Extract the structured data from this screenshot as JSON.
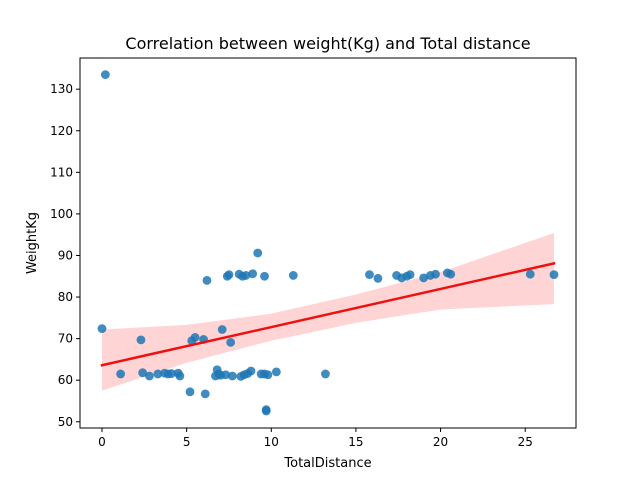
{
  "chart_data": {
    "type": "scatter",
    "title": "Correlation between weight(Kg) and Total distance",
    "xlabel": "TotalDistance",
    "ylabel": "WeightKg",
    "xlim": [
      -1.3,
      28.0
    ],
    "ylim": [
      48.5,
      137.5
    ],
    "xticks": [
      0,
      5,
      10,
      15,
      20,
      25
    ],
    "yticks": [
      50,
      60,
      70,
      80,
      90,
      100,
      110,
      120,
      130
    ],
    "grid": false,
    "colors": {
      "points": "#1f77b4",
      "regression_line": "#ee1111",
      "confidence_band": "#ffcccc"
    },
    "regression": {
      "x": [
        0,
        26.7
      ],
      "y": [
        63.6,
        88.1
      ]
    },
    "confidence_band": {
      "x": [
        0,
        5,
        10,
        15,
        20,
        26.7
      ],
      "lower": [
        57.5,
        64.2,
        69.5,
        73.8,
        77.0,
        78.3
      ],
      "upper": [
        72.2,
        73.3,
        76.0,
        80.6,
        86.0,
        95.4
      ]
    },
    "points": [
      {
        "x": 0.2,
        "y": 133.5
      },
      {
        "x": 0.0,
        "y": 72.4
      },
      {
        "x": 1.1,
        "y": 61.5
      },
      {
        "x": 2.3,
        "y": 69.7
      },
      {
        "x": 2.4,
        "y": 61.8
      },
      {
        "x": 2.8,
        "y": 61.0
      },
      {
        "x": 3.3,
        "y": 61.5
      },
      {
        "x": 3.7,
        "y": 61.7
      },
      {
        "x": 3.9,
        "y": 61.5
      },
      {
        "x": 4.1,
        "y": 61.6
      },
      {
        "x": 4.5,
        "y": 61.7
      },
      {
        "x": 4.6,
        "y": 61.0
      },
      {
        "x": 5.2,
        "y": 57.2
      },
      {
        "x": 5.3,
        "y": 69.5
      },
      {
        "x": 5.5,
        "y": 70.3
      },
      {
        "x": 6.0,
        "y": 69.8
      },
      {
        "x": 6.1,
        "y": 56.7
      },
      {
        "x": 6.2,
        "y": 84.0
      },
      {
        "x": 6.7,
        "y": 61.0
      },
      {
        "x": 6.8,
        "y": 62.5
      },
      {
        "x": 6.9,
        "y": 61.5
      },
      {
        "x": 7.0,
        "y": 61.2
      },
      {
        "x": 7.1,
        "y": 72.2
      },
      {
        "x": 7.3,
        "y": 61.3
      },
      {
        "x": 7.4,
        "y": 85.0
      },
      {
        "x": 7.5,
        "y": 85.4
      },
      {
        "x": 7.6,
        "y": 69.1
      },
      {
        "x": 7.7,
        "y": 61.0
      },
      {
        "x": 8.1,
        "y": 85.5
      },
      {
        "x": 8.2,
        "y": 60.9
      },
      {
        "x": 8.3,
        "y": 85.0
      },
      {
        "x": 8.4,
        "y": 61.3
      },
      {
        "x": 8.5,
        "y": 85.2
      },
      {
        "x": 8.6,
        "y": 61.6
      },
      {
        "x": 8.8,
        "y": 62.2
      },
      {
        "x": 8.9,
        "y": 85.6
      },
      {
        "x": 9.2,
        "y": 90.6
      },
      {
        "x": 9.4,
        "y": 61.5
      },
      {
        "x": 9.6,
        "y": 85.0
      },
      {
        "x": 9.6,
        "y": 61.5
      },
      {
        "x": 9.7,
        "y": 52.6
      },
      {
        "x": 9.8,
        "y": 61.3
      },
      {
        "x": 9.7,
        "y": 52.9
      },
      {
        "x": 10.3,
        "y": 62.0
      },
      {
        "x": 11.3,
        "y": 85.2
      },
      {
        "x": 13.2,
        "y": 61.5
      },
      {
        "x": 15.8,
        "y": 85.4
      },
      {
        "x": 16.3,
        "y": 84.5
      },
      {
        "x": 17.4,
        "y": 85.2
      },
      {
        "x": 17.7,
        "y": 84.6
      },
      {
        "x": 18.0,
        "y": 85.0
      },
      {
        "x": 18.2,
        "y": 85.4
      },
      {
        "x": 19.0,
        "y": 84.6
      },
      {
        "x": 19.4,
        "y": 85.2
      },
      {
        "x": 19.7,
        "y": 85.5
      },
      {
        "x": 20.4,
        "y": 85.8
      },
      {
        "x": 20.6,
        "y": 85.5
      },
      {
        "x": 25.3,
        "y": 85.5
      },
      {
        "x": 26.7,
        "y": 85.4
      }
    ]
  }
}
